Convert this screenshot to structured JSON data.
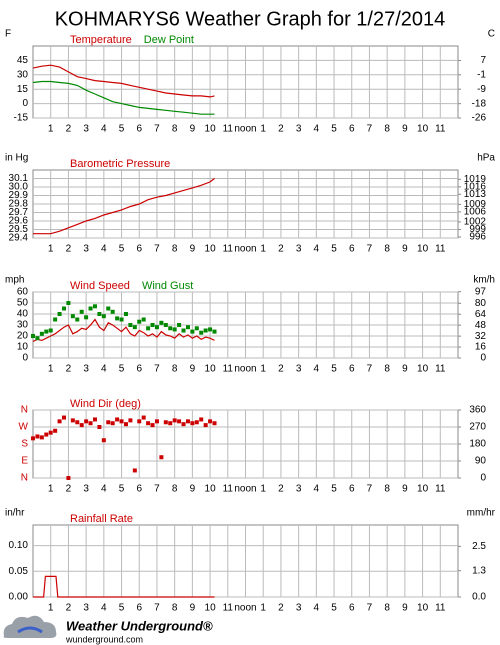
{
  "title": "KOHMARYS6 Weather Graph for 1/27/2014",
  "footer": {
    "brand": "Weather Underground®",
    "site": "wunderground.com"
  },
  "chart_data": [
    {
      "type": "line",
      "y_unit": "F",
      "y2_unit": "C",
      "xlim": [
        0,
        24
      ],
      "xticks": [
        1,
        2,
        3,
        4,
        5,
        6,
        7,
        8,
        9,
        10,
        11,
        {
          "value": 12,
          "label": "noon"
        },
        {
          "value": 13,
          "label": "1"
        },
        {
          "value": 14,
          "label": "2"
        },
        {
          "value": 15,
          "label": "3"
        },
        {
          "value": 16,
          "label": "4"
        },
        {
          "value": 17,
          "label": "5"
        },
        {
          "value": 18,
          "label": "6"
        },
        {
          "value": 19,
          "label": "7"
        },
        {
          "value": 20,
          "label": "8"
        },
        {
          "value": 21,
          "label": "9"
        },
        {
          "value": 22,
          "label": "10"
        },
        {
          "value": 23,
          "label": "11"
        }
      ],
      "ylim": [
        -15,
        60
      ],
      "yticks": [
        -15,
        0,
        15,
        30,
        45
      ],
      "y2lim": [
        -26.1,
        15.6
      ],
      "y2ticks": [
        {
          "value": -26.1,
          "label": "-26"
        },
        {
          "value": -17.8,
          "label": "-18"
        },
        {
          "value": -9.4,
          "label": "-9"
        },
        {
          "value": -1.1,
          "label": "-1"
        },
        {
          "value": 7.2,
          "label": "7"
        }
      ],
      "grid": true,
      "x": [
        0,
        0.5,
        1,
        1.5,
        2,
        2.5,
        3,
        3.5,
        4,
        4.5,
        5,
        5.5,
        6,
        6.5,
        7,
        7.5,
        8,
        8.5,
        9,
        9.5,
        10,
        10.25
      ],
      "series": [
        {
          "name": "Temperature",
          "color": "#cc0000",
          "style": "line",
          "values": [
            37,
            39,
            40,
            38,
            33,
            28,
            26,
            24,
            23,
            22,
            21,
            19,
            17,
            15,
            13,
            11,
            10,
            9,
            8,
            8,
            7,
            8
          ]
        },
        {
          "name": "Dew Point",
          "color": "#008800",
          "style": "line",
          "values": [
            22,
            23,
            23,
            22,
            21,
            19,
            14,
            10,
            6,
            2,
            0,
            -2,
            -4,
            -5,
            -6,
            -7,
            -8,
            -9,
            -10,
            -11,
            -11,
            -11
          ]
        }
      ]
    },
    {
      "type": "line",
      "y_unit": "in Hg",
      "y2_unit": "hPa",
      "xlim": [
        0,
        24
      ],
      "xticks": [
        1,
        2,
        3,
        4,
        5,
        6,
        7,
        8,
        9,
        10,
        11,
        {
          "value": 12,
          "label": "noon"
        },
        {
          "value": 13,
          "label": "1"
        },
        {
          "value": 14,
          "label": "2"
        },
        {
          "value": 15,
          "label": "3"
        },
        {
          "value": 16,
          "label": "4"
        },
        {
          "value": 17,
          "label": "5"
        },
        {
          "value": 18,
          "label": "6"
        },
        {
          "value": 19,
          "label": "7"
        },
        {
          "value": 20,
          "label": "8"
        },
        {
          "value": 21,
          "label": "9"
        },
        {
          "value": 22,
          "label": "10"
        },
        {
          "value": 23,
          "label": "11"
        }
      ],
      "ylim": [
        29.4,
        30.2
      ],
      "yticks": [
        29.4,
        29.5,
        29.6,
        29.7,
        29.8,
        29.9,
        {
          "value": 30,
          "label": "30.0"
        },
        30.1
      ],
      "y2lim": [
        995.6,
        1022.7
      ],
      "y2ticks": [
        996,
        999,
        1002,
        1006,
        1009,
        1013,
        1016,
        1019
      ],
      "grid": true,
      "x": [
        0,
        0.5,
        1,
        1.5,
        2,
        2.5,
        3,
        3.5,
        4,
        4.5,
        5,
        5.5,
        6,
        6.5,
        7,
        7.5,
        8,
        8.5,
        9,
        9.5,
        10,
        10.25
      ],
      "series": [
        {
          "name": "Barometric Pressure",
          "color": "#cc0000",
          "style": "line",
          "values": [
            29.45,
            29.45,
            29.45,
            29.48,
            29.52,
            29.56,
            29.6,
            29.63,
            29.67,
            29.7,
            29.73,
            29.77,
            29.8,
            29.85,
            29.88,
            29.9,
            29.93,
            29.96,
            29.99,
            30.02,
            30.06,
            30.1
          ]
        }
      ]
    },
    {
      "type": "line",
      "y_unit": "mph",
      "y2_unit": "km/h",
      "xlim": [
        0,
        24
      ],
      "xticks": [
        1,
        2,
        3,
        4,
        5,
        6,
        7,
        8,
        9,
        10,
        11,
        {
          "value": 12,
          "label": "noon"
        },
        {
          "value": 13,
          "label": "1"
        },
        {
          "value": 14,
          "label": "2"
        },
        {
          "value": 15,
          "label": "3"
        },
        {
          "value": 16,
          "label": "4"
        },
        {
          "value": 17,
          "label": "5"
        },
        {
          "value": 18,
          "label": "6"
        },
        {
          "value": 19,
          "label": "7"
        },
        {
          "value": 20,
          "label": "8"
        },
        {
          "value": 21,
          "label": "9"
        },
        {
          "value": 22,
          "label": "10"
        },
        {
          "value": 23,
          "label": "11"
        }
      ],
      "ylim": [
        0,
        60
      ],
      "yticks": [
        0,
        10,
        20,
        30,
        40,
        50,
        60
      ],
      "y2lim": [
        0,
        96.56
      ],
      "y2ticks": [
        0,
        16,
        32,
        48,
        64,
        80,
        97
      ],
      "grid": true,
      "x": [
        0,
        0.25,
        0.5,
        0.75,
        1,
        1.25,
        1.5,
        1.75,
        2,
        2.25,
        2.5,
        2.75,
        3,
        3.25,
        3.5,
        3.75,
        4,
        4.25,
        4.5,
        4.75,
        5,
        5.25,
        5.5,
        5.75,
        6,
        6.25,
        6.5,
        6.75,
        7,
        7.25,
        7.5,
        7.75,
        8,
        8.25,
        8.5,
        8.75,
        9,
        9.25,
        9.5,
        9.75,
        10,
        10.25
      ],
      "series": [
        {
          "name": "Wind Speed",
          "color": "#cc0000",
          "style": "line",
          "values": [
            15,
            17,
            16,
            18,
            20,
            22,
            25,
            28,
            30,
            22,
            24,
            27,
            26,
            30,
            35,
            28,
            25,
            32,
            30,
            27,
            24,
            28,
            22,
            20,
            25,
            23,
            20,
            22,
            19,
            24,
            21,
            20,
            18,
            22,
            19,
            21,
            18,
            20,
            17,
            19,
            18,
            16
          ]
        },
        {
          "name": "Wind Gust",
          "color": "#008800",
          "style": "square",
          "values": [
            20,
            18,
            22,
            24,
            25,
            35,
            40,
            45,
            50,
            38,
            35,
            42,
            37,
            45,
            47,
            40,
            38,
            45,
            42,
            36,
            35,
            40,
            30,
            28,
            33,
            35,
            27,
            30,
            28,
            32,
            30,
            27,
            26,
            30,
            25,
            28,
            24,
            27,
            23,
            25,
            26,
            24
          ]
        }
      ]
    },
    {
      "type": "scatter",
      "y_unit": "",
      "y2_unit": "",
      "xlim": [
        0,
        24
      ],
      "xticks": [
        1,
        2,
        3,
        4,
        5,
        6,
        7,
        8,
        9,
        10,
        11,
        {
          "value": 12,
          "label": "noon"
        },
        {
          "value": 13,
          "label": "1"
        },
        {
          "value": 14,
          "label": "2"
        },
        {
          "value": 15,
          "label": "3"
        },
        {
          "value": 16,
          "label": "4"
        },
        {
          "value": 17,
          "label": "5"
        },
        {
          "value": 18,
          "label": "6"
        },
        {
          "value": 19,
          "label": "7"
        },
        {
          "value": 20,
          "label": "8"
        },
        {
          "value": 21,
          "label": "9"
        },
        {
          "value": 22,
          "label": "10"
        },
        {
          "value": 23,
          "label": "11"
        }
      ],
      "ylim": [
        0,
        360
      ],
      "yticks": [
        {
          "value": 0,
          "label": "N"
        },
        {
          "value": 90,
          "label": "E"
        },
        {
          "value": 180,
          "label": "S"
        },
        {
          "value": 270,
          "label": "W"
        },
        {
          "value": 360,
          "label": "N"
        }
      ],
      "ytick_color": "#cc0000",
      "y2lim": [
        0,
        360
      ],
      "y2ticks": [
        0,
        90,
        180,
        270,
        360
      ],
      "grid": true,
      "x": [
        0,
        0.25,
        0.5,
        0.75,
        1,
        1.25,
        1.5,
        1.75,
        2,
        2.25,
        2.5,
        2.75,
        3,
        3.25,
        3.5,
        3.75,
        4,
        4.25,
        4.5,
        4.75,
        5,
        5.25,
        5.5,
        5.75,
        6,
        6.25,
        6.5,
        6.75,
        7,
        7.25,
        7.5,
        7.75,
        8,
        8.25,
        8.5,
        8.75,
        9,
        9.25,
        9.5,
        9.75,
        10,
        10.25
      ],
      "series": [
        {
          "name": "Wind Dir (deg)",
          "color": "#cc0000",
          "style": "square",
          "values": [
            210,
            220,
            215,
            230,
            240,
            250,
            300,
            320,
            0,
            305,
            295,
            280,
            300,
            290,
            310,
            270,
            200,
            295,
            290,
            310,
            300,
            285,
            305,
            40,
            300,
            320,
            290,
            280,
            300,
            110,
            295,
            290,
            305,
            300,
            285,
            300,
            290,
            295,
            310,
            280,
            300,
            290
          ]
        }
      ]
    },
    {
      "type": "line",
      "y_unit": "in/hr",
      "y2_unit": "mm/hr",
      "xlim": [
        0,
        24
      ],
      "xticks": [
        1,
        2,
        3,
        4,
        5,
        6,
        7,
        8,
        9,
        10,
        11,
        {
          "value": 12,
          "label": "noon"
        },
        {
          "value": 13,
          "label": "1"
        },
        {
          "value": 14,
          "label": "2"
        },
        {
          "value": 15,
          "label": "3"
        },
        {
          "value": 16,
          "label": "4"
        },
        {
          "value": 17,
          "label": "5"
        },
        {
          "value": 18,
          "label": "6"
        },
        {
          "value": 19,
          "label": "7"
        },
        {
          "value": 20,
          "label": "8"
        },
        {
          "value": 21,
          "label": "9"
        },
        {
          "value": 22,
          "label": "10"
        },
        {
          "value": 23,
          "label": "11"
        }
      ],
      "ylim": [
        0,
        0.14
      ],
      "yticks": [
        {
          "value": 0,
          "label": "0.00"
        },
        0.05,
        {
          "value": 0.1,
          "label": "0.10"
        }
      ],
      "y2lim": [
        0,
        3.556
      ],
      "y2ticks": [
        {
          "value": 0,
          "label": "0.0"
        },
        1.3,
        2.5
      ],
      "grid": true,
      "x": [
        0,
        0.6,
        0.7,
        1.3,
        1.4,
        10.25
      ],
      "series": [
        {
          "name": "Rainfall Rate",
          "color": "#cc0000",
          "style": "line",
          "values": [
            0,
            0,
            0.04,
            0.04,
            0,
            0
          ]
        }
      ]
    }
  ]
}
